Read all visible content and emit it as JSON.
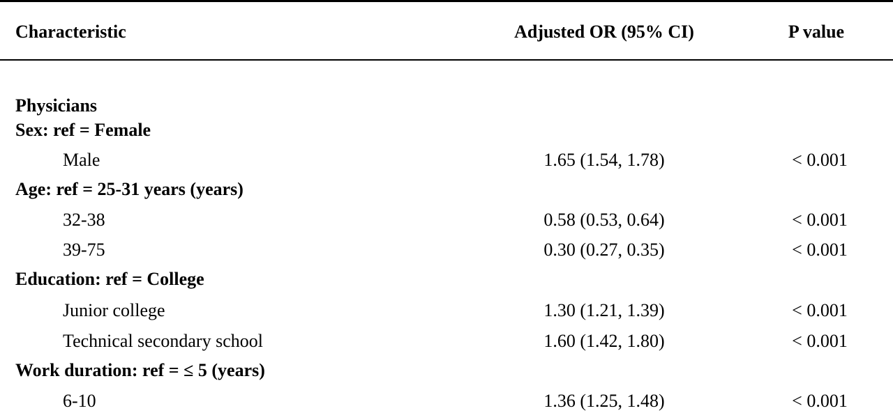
{
  "table": {
    "header": [
      "Characteristic",
      "Adjusted OR (95% CI)",
      "P value"
    ],
    "rows": [
      [
        "Physicians"
      ],
      [
        "Sex: ref = Female"
      ],
      [
        "Male",
        "1.65 (1.54, 1.78)",
        "< 0.001"
      ],
      [
        "Age: ref = 25-31 years (years)"
      ],
      [
        "32-38",
        "0.58 (0.53, 0.64)",
        "< 0.001"
      ],
      [
        "39-75",
        "0.30 (0.27, 0.35)",
        "< 0.001"
      ],
      [
        "Education: ref = College"
      ],
      [
        "Junior college",
        "1.30 (1.21, 1.39)",
        "< 0.001"
      ],
      [
        "Technical secondary school",
        "1.60 (1.42, 1.80)",
        "< 0.001"
      ],
      [
        "Work duration: ref = ≤ 5 (years)"
      ],
      [
        "6-10",
        "1.36 (1.25, 1.48)",
        "< 0.001"
      ]
    ]
  }
}
